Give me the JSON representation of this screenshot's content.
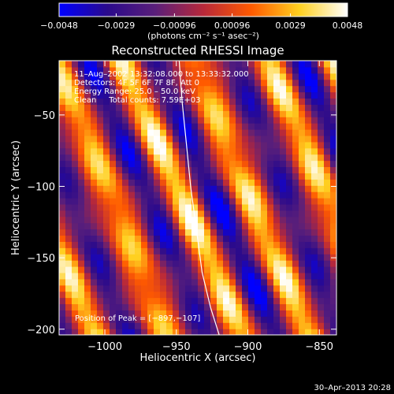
{
  "chart_data": {
    "type": "heatmap",
    "title": "Reconstructed RHESSI Image",
    "xlabel": "Heliocentric X (arcsec)",
    "ylabel": "Heliocentric Y (arcsec)",
    "xlim": [
      -1032,
      -838
    ],
    "ylim": [
      -204,
      -12
    ],
    "xticks": [
      -1000,
      -950,
      -900,
      -850
    ],
    "xtick_labels": [
      "−1000",
      "−950",
      "−900",
      "−850"
    ],
    "yticks": [
      -50,
      -100,
      -150,
      -200
    ],
    "ytick_labels": [
      "−50",
      "−100",
      "−150",
      "−200"
    ],
    "colorbar": {
      "range": [
        -0.0048,
        0.0048
      ],
      "tick_values": [
        -0.0048,
        -0.0029,
        -0.00096,
        0.00096,
        0.0029,
        0.0048
      ],
      "tick_labels": [
        "−0.0048",
        "−0.0029",
        "−0.00096",
        "0.00096",
        "0.0029",
        "0.0048"
      ],
      "unit_label": "(photons cm⁻² s⁻¹ asec⁻²)",
      "colors": [
        "#0000ff",
        "#2a0a8c",
        "#5a1f7a",
        "#b8283a",
        "#ff5a00",
        "#ffd020",
        "#ffffff"
      ]
    },
    "annotations": {
      "time_range": "11–Aug–2002 13:32:08.000 to 13:33:32.000",
      "detectors": "Detectors: 4F 5F 6F 7F 8F, Att 0",
      "energy": "Energy Range: 25.0 – 50.0 keV",
      "clean": "Clean     Total counts: 7.59E+03",
      "peak": "Position of Peak = [−897,−107]"
    },
    "peak_position": [
      -897,
      -107
    ],
    "limb_curve": [
      [
        -948,
        -12
      ],
      [
        -946,
        -40
      ],
      [
        -943,
        -70
      ],
      [
        -940,
        -100
      ],
      [
        -936,
        -130
      ],
      [
        -932,
        -160
      ],
      [
        -926,
        -185
      ],
      [
        -920,
        -204
      ]
    ],
    "grid": false
  },
  "footer": {
    "timestamp": "30–Apr–2013 20:28"
  }
}
